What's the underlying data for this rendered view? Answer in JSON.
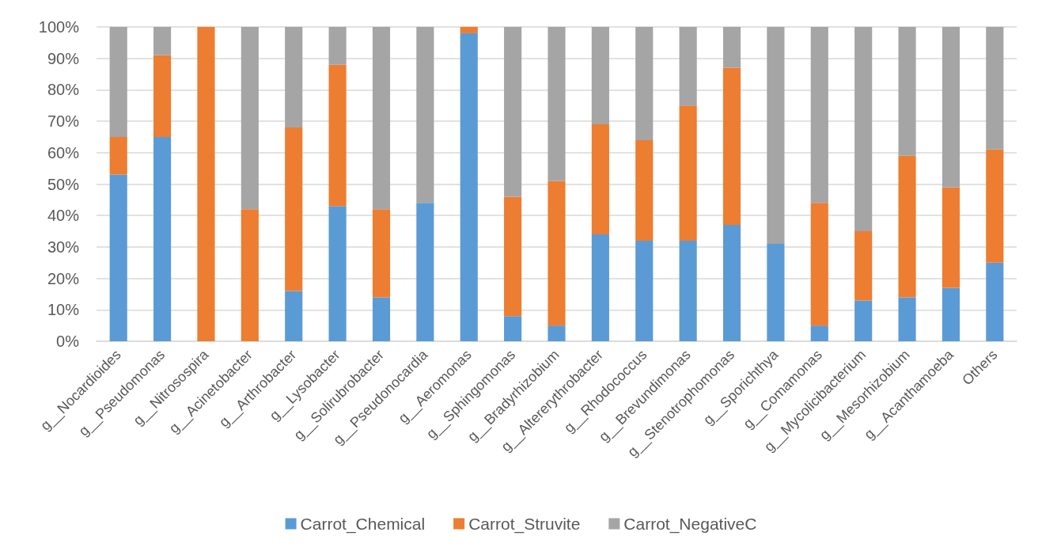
{
  "chart_data": {
    "type": "bar",
    "stacked": true,
    "categories": [
      "g__Nocardioides",
      "g__Pseudomonas",
      "g__Nitrosospira",
      "g__Acinetobacter",
      "g__Arthrobacter",
      "g__Lysobacter",
      "g__Solirubrobacter",
      "g__Pseudonocardia",
      "g__Aeromonas",
      "g__Sphingomonas",
      "g__Bradyrhizobium",
      "g__Altererythrobacter",
      "g__Rhodococcus",
      "g__Brevundimonas",
      "g__Stenotrophomonas",
      "g__Sporichthya",
      "g__Comamonas",
      "g__Mycolicibacterium",
      "g__Mesorhizobium",
      "g__Acanthamoeba",
      "Others"
    ],
    "series": [
      {
        "name": "Carrot_Chemical",
        "color": "#5b9bd5",
        "values": [
          53,
          65,
          0,
          0,
          16,
          43,
          14,
          44,
          98,
          8,
          5,
          34,
          32,
          32,
          37,
          31,
          5,
          13,
          14,
          17,
          25
        ]
      },
      {
        "name": "Carrot_Struvite",
        "color": "#ed7d31",
        "values": [
          12,
          26,
          100,
          42,
          52,
          45,
          28,
          0,
          2,
          38,
          46,
          35,
          32,
          43,
          50,
          0,
          39,
          22,
          45,
          32,
          36
        ]
      },
      {
        "name": "Carrot_NegativeC",
        "color": "#a5a5a5",
        "values": [
          35,
          9,
          0,
          58,
          32,
          12,
          58,
          56,
          0,
          54,
          49,
          31,
          36,
          25,
          13,
          69,
          56,
          65,
          41,
          51,
          39
        ]
      }
    ],
    "ylim": [
      0,
      100
    ],
    "yticks": [
      {
        "value": 0,
        "label": "0%"
      },
      {
        "value": 10,
        "label": "10%"
      },
      {
        "value": 20,
        "label": "20%"
      },
      {
        "value": 30,
        "label": "30%"
      },
      {
        "value": 40,
        "label": "40%"
      },
      {
        "value": 50,
        "label": "50%"
      },
      {
        "value": 60,
        "label": "60%"
      },
      {
        "value": 70,
        "label": "70%"
      },
      {
        "value": 80,
        "label": "80%"
      },
      {
        "value": 90,
        "label": "90%"
      },
      {
        "value": 100,
        "label": "100%"
      }
    ],
    "grid": "y",
    "legend": "bottom"
  }
}
